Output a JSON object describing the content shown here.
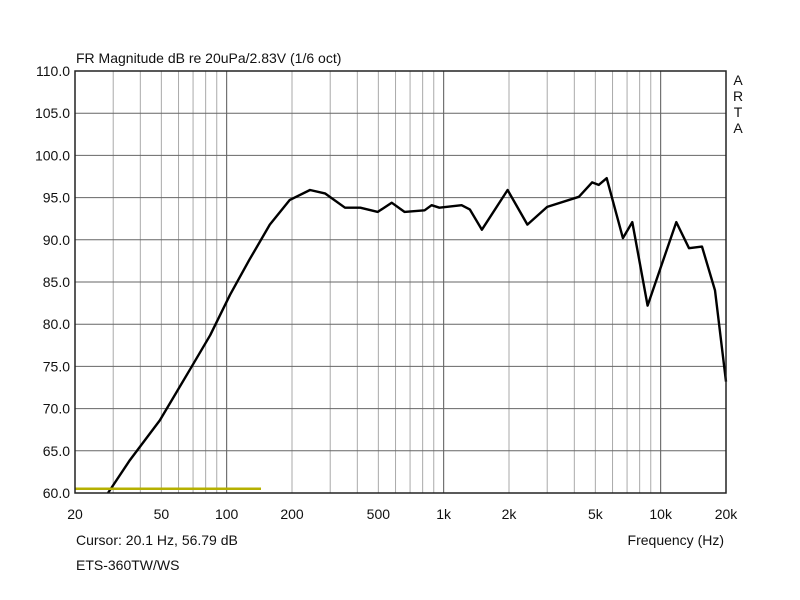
{
  "chart_data": {
    "type": "line",
    "title": "FR Magnitude dB re 20uPa/2.83V (1/6 oct)",
    "xlabel": "Frequency (Hz)",
    "ylabel": "",
    "xscale": "log",
    "xlim": [
      20,
      20000
    ],
    "ylim": [
      60,
      110
    ],
    "grid": true,
    "x_ticks": [
      {
        "value": 20,
        "label": "20"
      },
      {
        "value": 50,
        "label": "50"
      },
      {
        "value": 100,
        "label": "100"
      },
      {
        "value": 200,
        "label": "200"
      },
      {
        "value": 500,
        "label": "500"
      },
      {
        "value": 1000,
        "label": "1k"
      },
      {
        "value": 2000,
        "label": "2k"
      },
      {
        "value": 5000,
        "label": "5k"
      },
      {
        "value": 10000,
        "label": "10k"
      },
      {
        "value": 20000,
        "label": "20k"
      }
    ],
    "y_ticks": [
      "110.0",
      "105.0",
      "100.0",
      "95.0",
      "90.0",
      "85.0",
      "80.0",
      "75.0",
      "70.0",
      "65.0",
      "60.0"
    ],
    "series": [
      {
        "name": "ETS-360TW/WS",
        "color": "#000000",
        "x": [
          28.4,
          35.8,
          49.2,
          67.6,
          84,
          103.7,
          127,
          158,
          195,
          242,
          284,
          351,
          413,
          497,
          576,
          660,
          817,
          880,
          956,
          1210,
          1320,
          1500,
          1970,
          2430,
          3000,
          4200,
          4830,
          5180,
          5640,
          6700,
          7400,
          8700,
          11800,
          13500,
          15500,
          17800,
          20000
        ],
        "y": [
          60,
          63.9,
          68.6,
          74.6,
          78.7,
          83.5,
          87.6,
          91.8,
          94.7,
          95.9,
          95.5,
          93.8,
          93.8,
          93.3,
          94.4,
          93.3,
          93.5,
          94.1,
          93.8,
          94.1,
          93.6,
          91.2,
          95.9,
          91.8,
          93.9,
          95.1,
          96.8,
          96.5,
          97.3,
          90.2,
          92.1,
          82.2,
          92.1,
          89,
          89.2,
          84,
          73.2
        ]
      },
      {
        "name": "reference",
        "color": "#b5b000",
        "x": [
          20,
          144
        ],
        "y": [
          60.5,
          60.5
        ]
      }
    ],
    "cursor_text": "Cursor: 20.1 Hz, 56.79 dB",
    "measurement_name": "ETS-360TW/WS",
    "watermark": [
      "A",
      "R",
      "T",
      "A"
    ]
  }
}
